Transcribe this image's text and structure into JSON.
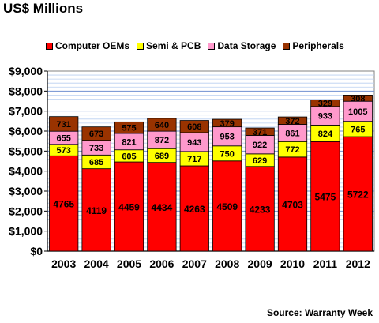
{
  "title": "US$ Millions",
  "source": "Source: Warranty Week",
  "chart_data": {
    "type": "bar",
    "stacked": true,
    "categories": [
      "2003",
      "2004",
      "2005",
      "2006",
      "2007",
      "2008",
      "2009",
      "2010",
      "2011",
      "2012"
    ],
    "series": [
      {
        "name": "Computer OEMs",
        "color": "#ff0000",
        "values": [
          4765,
          4119,
          4459,
          4434,
          4263,
          4509,
          4233,
          4703,
          5475,
          5722
        ]
      },
      {
        "name": "Semi & PCB",
        "color": "#ffff00",
        "values": [
          573,
          685,
          605,
          689,
          717,
          750,
          629,
          772,
          824,
          765
        ]
      },
      {
        "name": "Data Storage",
        "color": "#ff99cc",
        "values": [
          655,
          733,
          821,
          872,
          943,
          953,
          922,
          861,
          933,
          1005
        ]
      },
      {
        "name": "Peripherals",
        "color": "#993300",
        "values": [
          731,
          673,
          575,
          640,
          608,
          379,
          371,
          372,
          329,
          308
        ]
      }
    ],
    "y_ticks": [
      "$0",
      "$1,000",
      "$2,000",
      "$3,000",
      "$4,000",
      "$5,000",
      "$6,000",
      "$7,000",
      "$8,000",
      "$9,000"
    ],
    "ylim": [
      0,
      9000
    ],
    "grid": true,
    "legend_position": "top"
  }
}
